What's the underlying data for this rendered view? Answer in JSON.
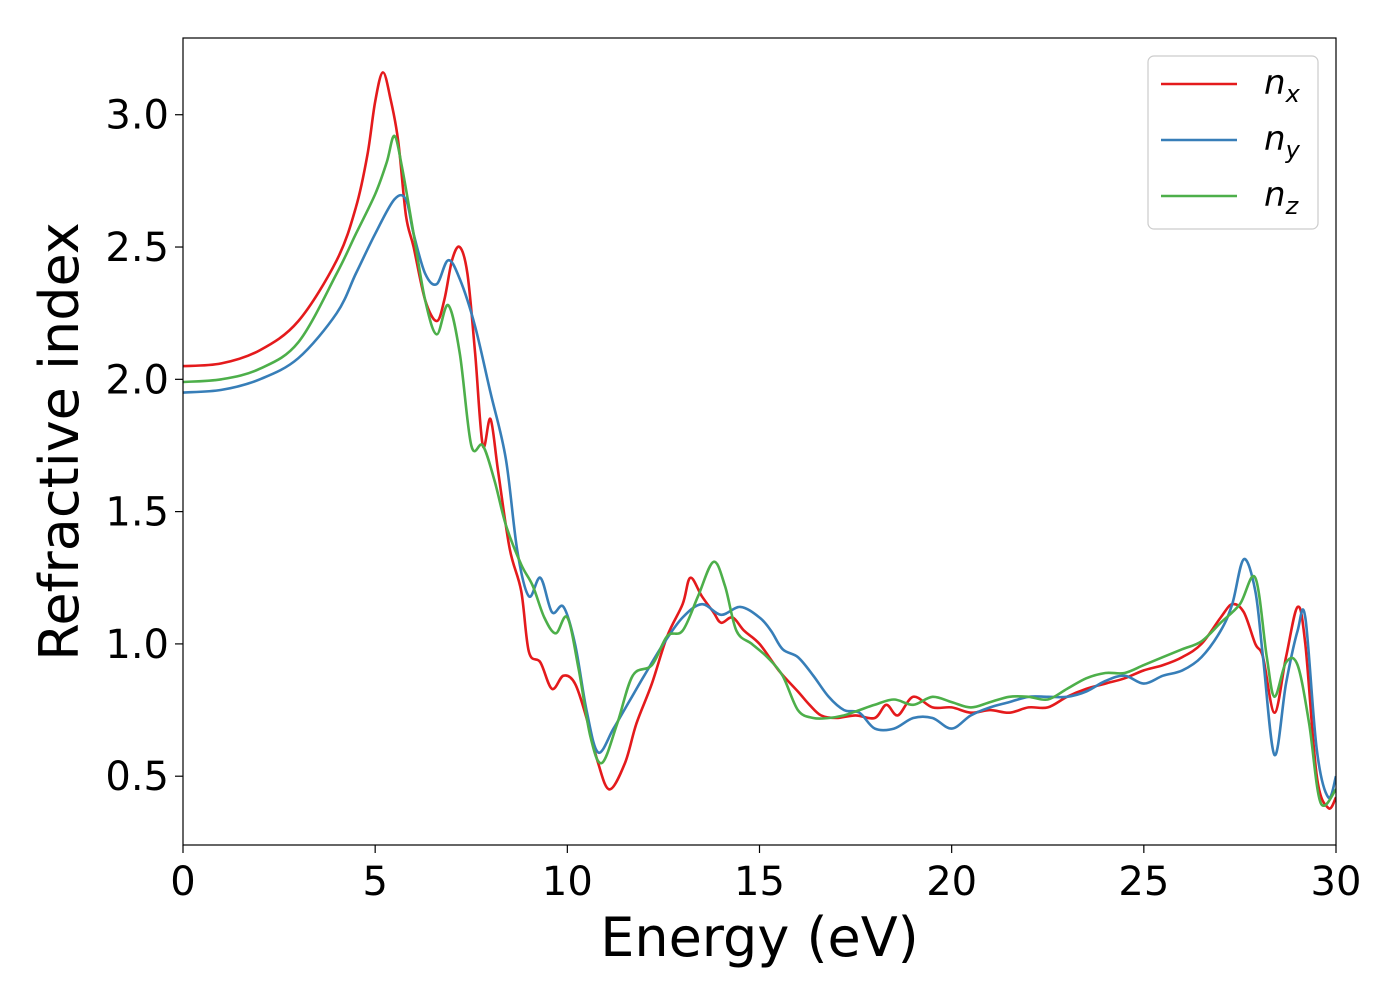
{
  "chart_data": {
    "type": "line",
    "xlabel": "Energy (eV)",
    "ylabel": "Refractive index",
    "xlim": [
      0,
      30
    ],
    "ylim": [
      0.24,
      3.29
    ],
    "xticks": [
      0,
      5,
      10,
      15,
      20,
      25,
      30
    ],
    "xtick_labels": [
      "0",
      "5",
      "10",
      "15",
      "20",
      "25",
      "30"
    ],
    "yticks": [
      0.5,
      1.0,
      1.5,
      2.0,
      2.5,
      3.0
    ],
    "ytick_labels": [
      "0.5",
      "1.0",
      "1.5",
      "2.0",
      "2.5",
      "3.0"
    ],
    "grid": false,
    "legend_position": "top-right",
    "series": [
      {
        "name": "n",
        "subscript": "x",
        "color": "#e41a1c",
        "points": [
          [
            0,
            2.05
          ],
          [
            1,
            2.06
          ],
          [
            2,
            2.11
          ],
          [
            3,
            2.22
          ],
          [
            4,
            2.45
          ],
          [
            4.5,
            2.65
          ],
          [
            4.8,
            2.85
          ],
          [
            5.0,
            3.05
          ],
          [
            5.2,
            3.16
          ],
          [
            5.4,
            3.06
          ],
          [
            5.6,
            2.9
          ],
          [
            5.8,
            2.62
          ],
          [
            6.0,
            2.5
          ],
          [
            6.3,
            2.3
          ],
          [
            6.6,
            2.22
          ],
          [
            6.8,
            2.3
          ],
          [
            7.0,
            2.45
          ],
          [
            7.2,
            2.5
          ],
          [
            7.4,
            2.4
          ],
          [
            7.6,
            2.1
          ],
          [
            7.8,
            1.75
          ],
          [
            8.0,
            1.85
          ],
          [
            8.2,
            1.65
          ],
          [
            8.5,
            1.36
          ],
          [
            8.8,
            1.2
          ],
          [
            9.0,
            0.97
          ],
          [
            9.3,
            0.93
          ],
          [
            9.6,
            0.83
          ],
          [
            9.9,
            0.88
          ],
          [
            10.2,
            0.85
          ],
          [
            10.5,
            0.72
          ],
          [
            10.8,
            0.55
          ],
          [
            11.1,
            0.45
          ],
          [
            11.5,
            0.55
          ],
          [
            11.8,
            0.7
          ],
          [
            12.2,
            0.85
          ],
          [
            12.6,
            1.03
          ],
          [
            13.0,
            1.15
          ],
          [
            13.2,
            1.25
          ],
          [
            13.5,
            1.18
          ],
          [
            13.8,
            1.12
          ],
          [
            14.0,
            1.08
          ],
          [
            14.3,
            1.1
          ],
          [
            14.6,
            1.05
          ],
          [
            15.0,
            1.0
          ],
          [
            15.5,
            0.9
          ],
          [
            16.0,
            0.82
          ],
          [
            16.3,
            0.77
          ],
          [
            16.6,
            0.73
          ],
          [
            17.0,
            0.72
          ],
          [
            17.5,
            0.73
          ],
          [
            18.0,
            0.72
          ],
          [
            18.3,
            0.77
          ],
          [
            18.6,
            0.73
          ],
          [
            19.0,
            0.8
          ],
          [
            19.5,
            0.76
          ],
          [
            20.0,
            0.76
          ],
          [
            20.5,
            0.74
          ],
          [
            21.0,
            0.75
          ],
          [
            21.5,
            0.74
          ],
          [
            22.0,
            0.76
          ],
          [
            22.5,
            0.76
          ],
          [
            23.0,
            0.8
          ],
          [
            23.5,
            0.83
          ],
          [
            24.0,
            0.85
          ],
          [
            24.5,
            0.87
          ],
          [
            25.0,
            0.9
          ],
          [
            25.5,
            0.92
          ],
          [
            26.0,
            0.95
          ],
          [
            26.5,
            1.0
          ],
          [
            27.0,
            1.1
          ],
          [
            27.3,
            1.15
          ],
          [
            27.6,
            1.12
          ],
          [
            27.9,
            1.0
          ],
          [
            28.1,
            0.95
          ],
          [
            28.4,
            0.74
          ],
          [
            28.7,
            0.95
          ],
          [
            29.0,
            1.14
          ],
          [
            29.2,
            1.0
          ],
          [
            29.5,
            0.5
          ],
          [
            29.8,
            0.38
          ],
          [
            30.0,
            0.42
          ]
        ]
      },
      {
        "name": "n",
        "subscript": "y",
        "color": "#377eb8",
        "points": [
          [
            0,
            1.95
          ],
          [
            1,
            1.96
          ],
          [
            2,
            2.0
          ],
          [
            3,
            2.08
          ],
          [
            4,
            2.25
          ],
          [
            4.5,
            2.4
          ],
          [
            5.0,
            2.55
          ],
          [
            5.5,
            2.68
          ],
          [
            5.8,
            2.68
          ],
          [
            6.0,
            2.55
          ],
          [
            6.3,
            2.4
          ],
          [
            6.6,
            2.36
          ],
          [
            6.9,
            2.45
          ],
          [
            7.2,
            2.38
          ],
          [
            7.6,
            2.2
          ],
          [
            8.0,
            1.95
          ],
          [
            8.4,
            1.7
          ],
          [
            8.7,
            1.35
          ],
          [
            9.0,
            1.18
          ],
          [
            9.3,
            1.25
          ],
          [
            9.6,
            1.12
          ],
          [
            9.9,
            1.14
          ],
          [
            10.2,
            1.0
          ],
          [
            10.5,
            0.75
          ],
          [
            10.8,
            0.59
          ],
          [
            11.2,
            0.68
          ],
          [
            11.6,
            0.78
          ],
          [
            12.0,
            0.88
          ],
          [
            12.5,
            1.0
          ],
          [
            13.0,
            1.1
          ],
          [
            13.5,
            1.15
          ],
          [
            14.0,
            1.11
          ],
          [
            14.5,
            1.14
          ],
          [
            15.0,
            1.1
          ],
          [
            15.3,
            1.05
          ],
          [
            15.6,
            0.98
          ],
          [
            16.0,
            0.95
          ],
          [
            16.4,
            0.88
          ],
          [
            16.8,
            0.8
          ],
          [
            17.2,
            0.75
          ],
          [
            17.6,
            0.74
          ],
          [
            18.0,
            0.68
          ],
          [
            18.5,
            0.68
          ],
          [
            19.0,
            0.72
          ],
          [
            19.5,
            0.72
          ],
          [
            20.0,
            0.68
          ],
          [
            20.5,
            0.73
          ],
          [
            21.0,
            0.76
          ],
          [
            21.5,
            0.78
          ],
          [
            22.0,
            0.8
          ],
          [
            22.5,
            0.8
          ],
          [
            23.0,
            0.8
          ],
          [
            23.5,
            0.82
          ],
          [
            24.0,
            0.86
          ],
          [
            24.5,
            0.88
          ],
          [
            25.0,
            0.85
          ],
          [
            25.5,
            0.88
          ],
          [
            26.0,
            0.9
          ],
          [
            26.5,
            0.95
          ],
          [
            27.0,
            1.05
          ],
          [
            27.3,
            1.15
          ],
          [
            27.6,
            1.32
          ],
          [
            27.9,
            1.2
          ],
          [
            28.1,
            0.95
          ],
          [
            28.4,
            0.58
          ],
          [
            28.7,
            0.85
          ],
          [
            29.0,
            1.05
          ],
          [
            29.2,
            1.1
          ],
          [
            29.5,
            0.6
          ],
          [
            29.8,
            0.42
          ],
          [
            30.0,
            0.5
          ]
        ]
      },
      {
        "name": "n",
        "subscript": "z",
        "color": "#4daf4a",
        "points": [
          [
            0,
            1.99
          ],
          [
            1,
            2.0
          ],
          [
            2,
            2.04
          ],
          [
            3,
            2.14
          ],
          [
            4,
            2.4
          ],
          [
            4.5,
            2.55
          ],
          [
            5.0,
            2.7
          ],
          [
            5.3,
            2.82
          ],
          [
            5.5,
            2.92
          ],
          [
            5.7,
            2.8
          ],
          [
            6.0,
            2.55
          ],
          [
            6.3,
            2.3
          ],
          [
            6.6,
            2.17
          ],
          [
            6.9,
            2.28
          ],
          [
            7.2,
            2.1
          ],
          [
            7.5,
            1.75
          ],
          [
            7.8,
            1.75
          ],
          [
            8.1,
            1.62
          ],
          [
            8.4,
            1.45
          ],
          [
            8.8,
            1.3
          ],
          [
            9.1,
            1.22
          ],
          [
            9.4,
            1.1
          ],
          [
            9.7,
            1.04
          ],
          [
            10.0,
            1.1
          ],
          [
            10.3,
            0.9
          ],
          [
            10.6,
            0.65
          ],
          [
            10.9,
            0.55
          ],
          [
            11.3,
            0.7
          ],
          [
            11.7,
            0.88
          ],
          [
            12.2,
            0.92
          ],
          [
            12.6,
            1.03
          ],
          [
            13.0,
            1.05
          ],
          [
            13.4,
            1.18
          ],
          [
            13.8,
            1.31
          ],
          [
            14.1,
            1.22
          ],
          [
            14.4,
            1.05
          ],
          [
            14.8,
            1.0
          ],
          [
            15.2,
            0.95
          ],
          [
            15.6,
            0.88
          ],
          [
            16.0,
            0.75
          ],
          [
            16.4,
            0.72
          ],
          [
            16.8,
            0.72
          ],
          [
            17.2,
            0.73
          ],
          [
            17.6,
            0.75
          ],
          [
            18.0,
            0.77
          ],
          [
            18.5,
            0.79
          ],
          [
            19.0,
            0.77
          ],
          [
            19.5,
            0.8
          ],
          [
            20.0,
            0.78
          ],
          [
            20.5,
            0.76
          ],
          [
            21.0,
            0.78
          ],
          [
            21.5,
            0.8
          ],
          [
            22.0,
            0.8
          ],
          [
            22.5,
            0.79
          ],
          [
            23.0,
            0.83
          ],
          [
            23.5,
            0.87
          ],
          [
            24.0,
            0.89
          ],
          [
            24.5,
            0.89
          ],
          [
            25.0,
            0.92
          ],
          [
            25.5,
            0.95
          ],
          [
            26.0,
            0.98
          ],
          [
            26.5,
            1.01
          ],
          [
            27.0,
            1.08
          ],
          [
            27.5,
            1.15
          ],
          [
            27.9,
            1.25
          ],
          [
            28.2,
            0.95
          ],
          [
            28.4,
            0.8
          ],
          [
            28.7,
            0.93
          ],
          [
            29.0,
            0.92
          ],
          [
            29.3,
            0.7
          ],
          [
            29.6,
            0.4
          ],
          [
            30.0,
            0.45
          ]
        ]
      }
    ]
  }
}
